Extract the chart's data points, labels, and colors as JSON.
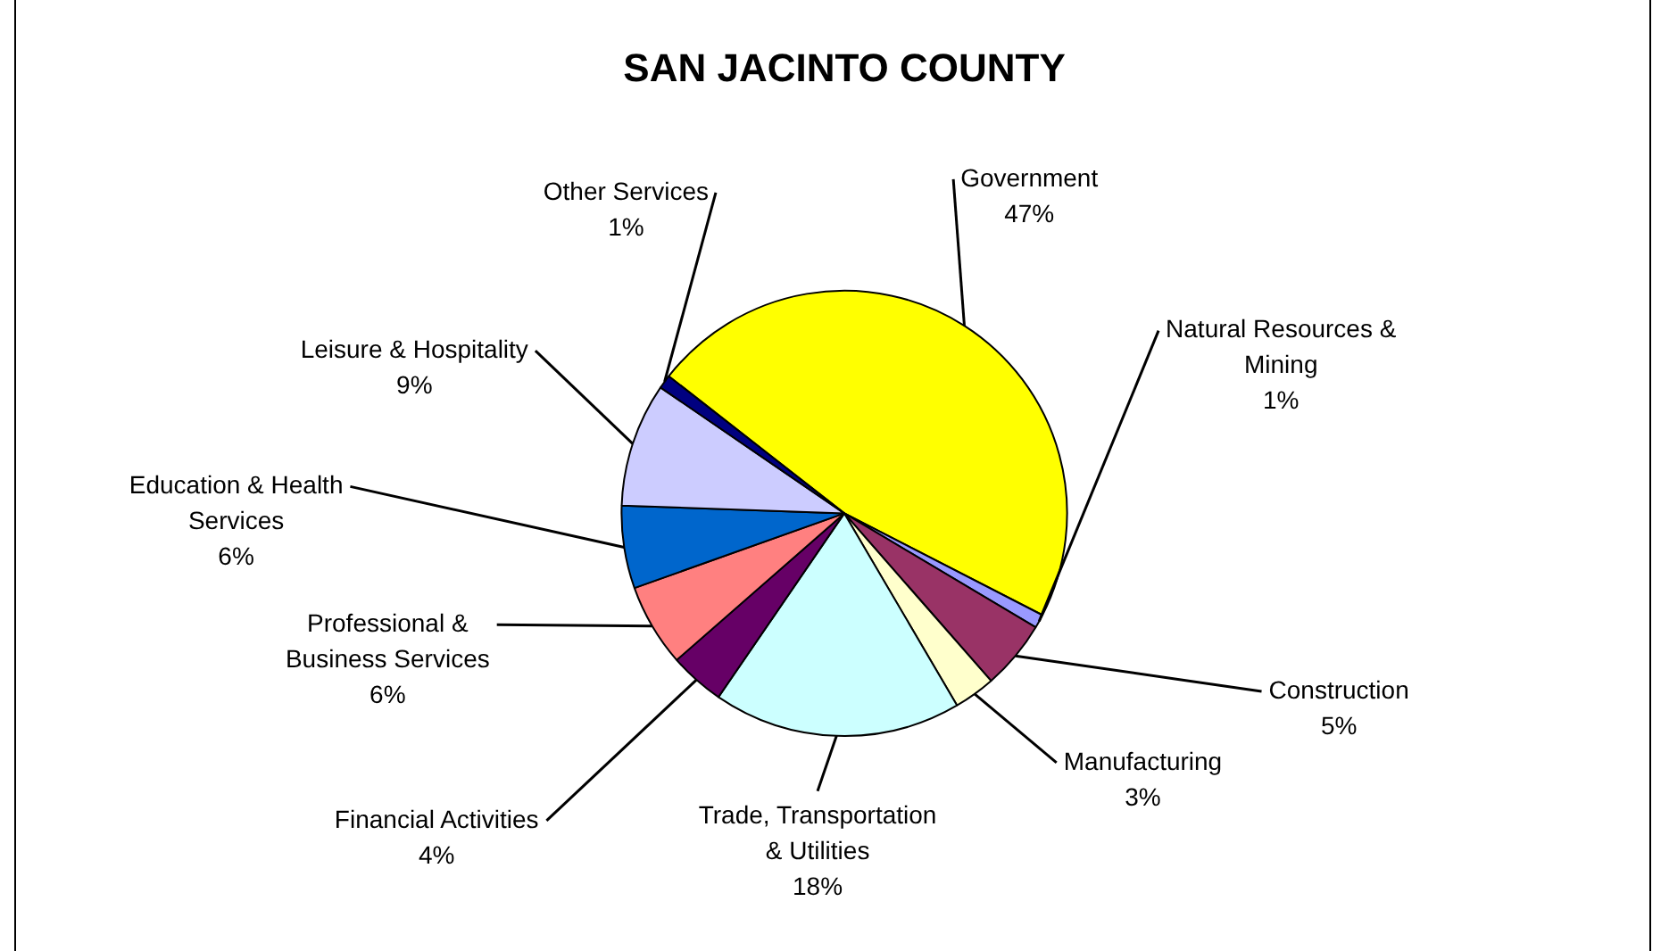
{
  "chart_data": {
    "type": "pie",
    "title": "SAN JACINTO COUNTY",
    "categories": [
      "Government",
      "Natural Resources & Mining",
      "Construction",
      "Manufacturing",
      "Trade, Transportation & Utilities",
      "Financial Activities",
      "Professional & Business Services",
      "Education & Health Services",
      "Leisure & Hospitality",
      "Other Services"
    ],
    "values": [
      47,
      1,
      5,
      3,
      18,
      4,
      6,
      6,
      9,
      1
    ],
    "colors": [
      "#ffff00",
      "#9999ff",
      "#993366",
      "#ffffcc",
      "#ccffff",
      "#660066",
      "#ff8080",
      "#0066cc",
      "#ccccff",
      "#000080"
    ],
    "value_labels": [
      "47%",
      "1%",
      "5%",
      "3%",
      "18%",
      "4%",
      "6%",
      "6%",
      "9%",
      "1%"
    ],
    "legend": false
  }
}
